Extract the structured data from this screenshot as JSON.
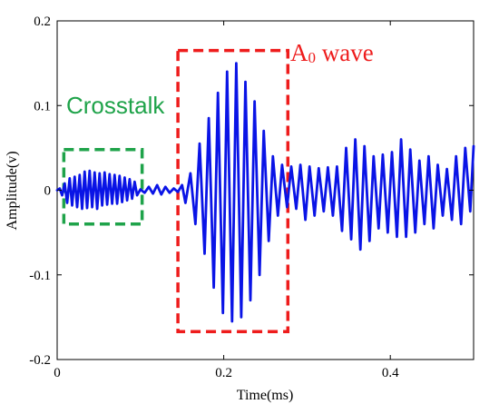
{
  "chart_data": {
    "type": "line",
    "title": "",
    "xlabel": "Time(ms)",
    "ylabel": "Amplitude(v)",
    "xlim": [
      0,
      0.5
    ],
    "ylim": [
      -0.2,
      0.2
    ],
    "xticks": [
      0,
      0.2,
      0.4
    ],
    "xtick_labels": [
      "0",
      "0.2",
      "0.4"
    ],
    "yticks": [
      -0.2,
      -0.1,
      0,
      0.1,
      0.2
    ],
    "ytick_labels": [
      "-0.2",
      "-0.1",
      "0",
      "0.1",
      "0.2"
    ],
    "grid": false,
    "series": [
      {
        "color": "#0a14e6",
        "x": [
          0,
          0.003,
          0.006,
          0.009,
          0.012,
          0.015,
          0.018,
          0.021,
          0.024,
          0.027,
          0.03,
          0.033,
          0.036,
          0.039,
          0.042,
          0.045,
          0.048,
          0.051,
          0.054,
          0.057,
          0.06,
          0.063,
          0.066,
          0.069,
          0.072,
          0.075,
          0.078,
          0.081,
          0.084,
          0.087,
          0.09,
          0.093,
          0.096,
          0.1,
          0.105,
          0.11,
          0.115,
          0.12,
          0.125,
          0.13,
          0.135,
          0.14,
          0.145,
          0.15,
          0.154,
          0.16,
          0.166,
          0.171,
          0.177,
          0.182,
          0.188,
          0.193,
          0.199,
          0.204,
          0.21,
          0.215,
          0.221,
          0.226,
          0.232,
          0.237,
          0.243,
          0.248,
          0.254,
          0.259,
          0.265,
          0.27,
          0.276,
          0.281,
          0.287,
          0.292,
          0.298,
          0.303,
          0.309,
          0.314,
          0.32,
          0.325,
          0.331,
          0.336,
          0.342,
          0.347,
          0.353,
          0.358,
          0.364,
          0.369,
          0.375,
          0.38,
          0.386,
          0.391,
          0.397,
          0.402,
          0.408,
          0.413,
          0.419,
          0.424,
          0.43,
          0.435,
          0.441,
          0.446,
          0.452,
          0.457,
          0.463,
          0.468,
          0.474,
          0.479,
          0.485,
          0.49,
          0.496,
          0.5
        ],
        "y": [
          0,
          0.002,
          -0.006,
          0.008,
          -0.015,
          0.014,
          -0.018,
          0.016,
          -0.02,
          0.018,
          -0.022,
          0.022,
          -0.021,
          0.023,
          -0.02,
          0.021,
          -0.022,
          0.02,
          -0.018,
          0.021,
          -0.017,
          0.019,
          -0.016,
          0.018,
          -0.016,
          0.017,
          -0.014,
          0.015,
          -0.012,
          0.013,
          -0.01,
          0.01,
          -0.006,
          0.001,
          -0.003,
          0.004,
          -0.004,
          0.006,
          -0.005,
          0.004,
          -0.003,
          0.002,
          -0.002,
          0.006,
          -0.015,
          0.02,
          -0.04,
          0.055,
          -0.075,
          0.085,
          -0.115,
          0.115,
          -0.145,
          0.14,
          -0.155,
          0.15,
          -0.15,
          0.128,
          -0.13,
          0.105,
          -0.1,
          0.07,
          -0.06,
          0.04,
          -0.03,
          0.03,
          -0.02,
          0.028,
          -0.022,
          0.03,
          -0.035,
          0.028,
          -0.03,
          0.026,
          -0.025,
          0.027,
          -0.03,
          0.028,
          -0.048,
          0.05,
          -0.058,
          0.06,
          -0.07,
          0.052,
          -0.06,
          0.04,
          -0.045,
          0.042,
          -0.05,
          0.045,
          -0.055,
          0.06,
          -0.055,
          0.048,
          -0.05,
          0.035,
          -0.04,
          0.04,
          -0.045,
          0.03,
          -0.03,
          0.025,
          -0.035,
          0.04,
          -0.04,
          0.05,
          -0.025,
          0.052
        ]
      }
    ],
    "annotations": [
      {
        "text": "Crosstalk",
        "color": "#1fa34a",
        "box": {
          "x0": 0.008,
          "x1": 0.102,
          "y0": -0.04,
          "y1": 0.048
        }
      },
      {
        "text": "A0 wave",
        "text_main": "A",
        "text_sub": "0",
        "text_rest": " wave",
        "color": "#ee1c1c",
        "box": {
          "x0": 0.145,
          "x1": 0.277,
          "y0": -0.167,
          "y1": 0.165
        }
      }
    ]
  }
}
